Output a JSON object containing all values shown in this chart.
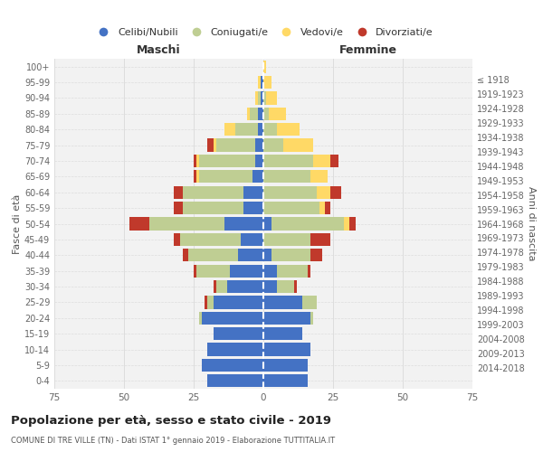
{
  "age_groups": [
    "0-4",
    "5-9",
    "10-14",
    "15-19",
    "20-24",
    "25-29",
    "30-34",
    "35-39",
    "40-44",
    "45-49",
    "50-54",
    "55-59",
    "60-64",
    "65-69",
    "70-74",
    "75-79",
    "80-84",
    "85-89",
    "90-94",
    "95-99",
    "100+"
  ],
  "birth_years": [
    "2014-2018",
    "2009-2013",
    "2004-2008",
    "1999-2003",
    "1994-1998",
    "1989-1993",
    "1984-1988",
    "1979-1983",
    "1974-1978",
    "1969-1973",
    "1964-1968",
    "1959-1963",
    "1954-1958",
    "1949-1953",
    "1944-1948",
    "1939-1943",
    "1934-1938",
    "1929-1933",
    "1924-1928",
    "1919-1923",
    "≤ 1918"
  ],
  "males": {
    "celibe": [
      20,
      22,
      20,
      18,
      22,
      18,
      13,
      12,
      9,
      8,
      14,
      7,
      7,
      4,
      3,
      3,
      2,
      2,
      1,
      1,
      0
    ],
    "coniugato": [
      0,
      0,
      0,
      0,
      1,
      2,
      4,
      12,
      18,
      22,
      27,
      22,
      22,
      19,
      20,
      14,
      8,
      3,
      1,
      0,
      0
    ],
    "vedovo": [
      0,
      0,
      0,
      0,
      0,
      0,
      0,
      0,
      0,
      0,
      0,
      0,
      0,
      1,
      1,
      1,
      4,
      1,
      1,
      1,
      0
    ],
    "divorziato": [
      0,
      0,
      0,
      0,
      0,
      1,
      1,
      1,
      2,
      2,
      7,
      3,
      3,
      1,
      1,
      2,
      0,
      0,
      0,
      0,
      0
    ]
  },
  "females": {
    "nubile": [
      16,
      16,
      17,
      14,
      17,
      14,
      5,
      5,
      3,
      0,
      3,
      0,
      0,
      0,
      0,
      0,
      0,
      0,
      0,
      0,
      0
    ],
    "coniugata": [
      0,
      0,
      0,
      0,
      1,
      5,
      6,
      11,
      14,
      17,
      26,
      20,
      19,
      17,
      18,
      7,
      5,
      2,
      1,
      0,
      0
    ],
    "vedova": [
      0,
      0,
      0,
      0,
      0,
      0,
      0,
      0,
      0,
      0,
      2,
      2,
      5,
      6,
      6,
      11,
      8,
      6,
      4,
      3,
      1
    ],
    "divorziata": [
      0,
      0,
      0,
      0,
      0,
      0,
      1,
      1,
      4,
      7,
      2,
      2,
      4,
      0,
      3,
      0,
      0,
      0,
      0,
      0,
      0
    ]
  },
  "colors": {
    "celibe": "#4472C4",
    "coniugato": "#BFCE93",
    "vedovo": "#FFD966",
    "divorziato": "#C0392B"
  },
  "xlim": 75,
  "title": "Popolazione per età, sesso e stato civile - 2019",
  "subtitle": "COMUNE DI TRE VILLE (TN) - Dati ISTAT 1° gennaio 2019 - Elaborazione TUTTITALIA.IT",
  "xlabel_left": "Maschi",
  "xlabel_right": "Femmine",
  "ylabel_left": "Fasce di età",
  "ylabel_right": "Anni di nascita",
  "legend_labels": [
    "Celibi/Nubili",
    "Coniugati/e",
    "Vedovi/e",
    "Divorziati/e"
  ],
  "bg_color": "#ffffff",
  "plot_bg_color": "#f2f2f2",
  "grid_color": "#dddddd"
}
